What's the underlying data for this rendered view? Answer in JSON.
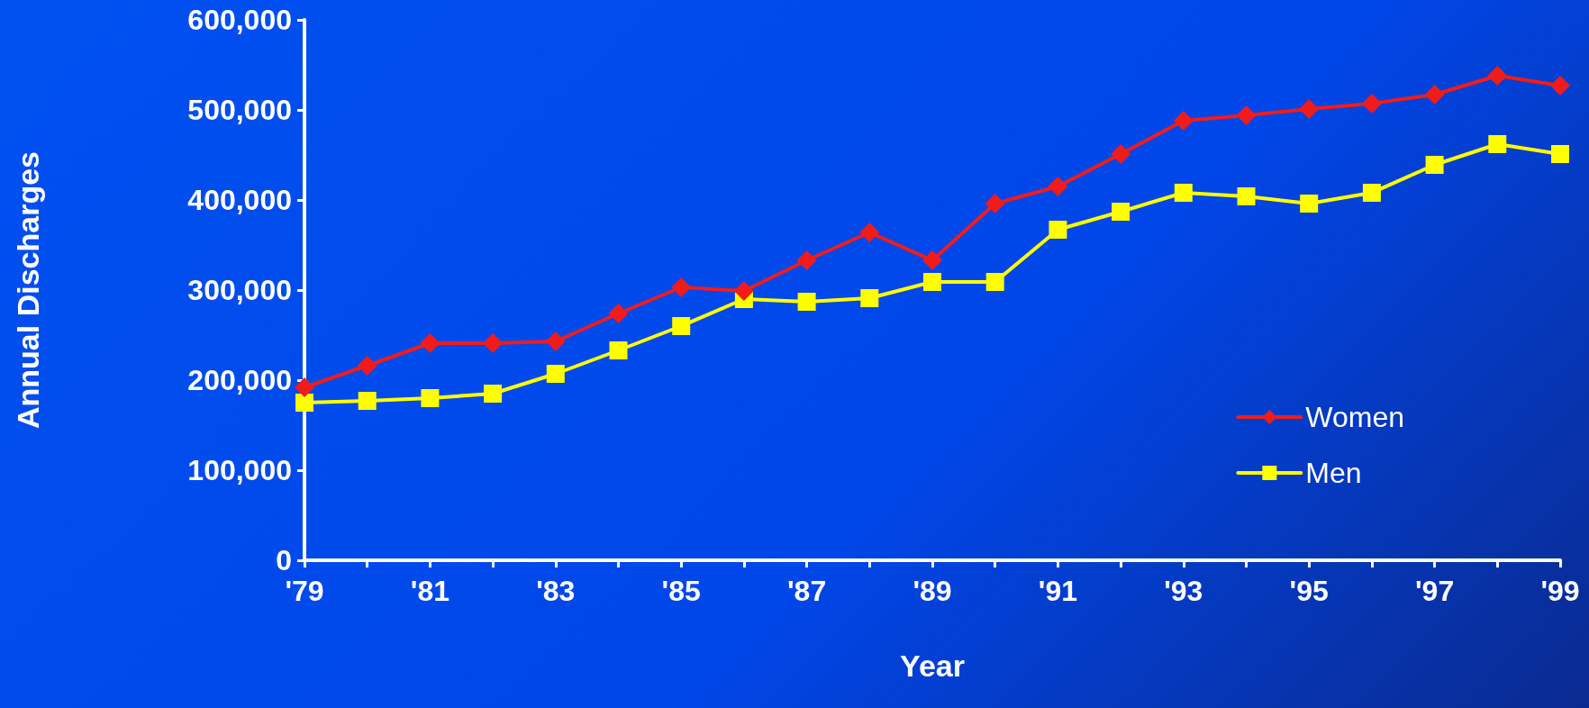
{
  "chart_data": {
    "type": "line",
    "xlabel": "Year",
    "ylabel": "Annual Discharges",
    "categories": [
      "'79",
      null,
      "'81",
      null,
      "'83",
      null,
      "'85",
      null,
      "'87",
      null,
      "'89",
      null,
      "'91",
      null,
      "'93",
      null,
      "'95",
      null,
      "'97",
      null,
      "'99"
    ],
    "series": [
      {
        "name": "Women",
        "color": "#f01c1c",
        "marker": "diamond",
        "values": [
          192000,
          216000,
          241000,
          241000,
          243000,
          274000,
          303000,
          299000,
          333000,
          364000,
          333000,
          396000,
          415000,
          451000,
          488000,
          494000,
          501000,
          507000,
          517000,
          538000,
          527000
        ]
      },
      {
        "name": "Men",
        "color": "#ffff00",
        "marker": "square",
        "values": [
          175000,
          177000,
          180000,
          185000,
          207000,
          233000,
          260000,
          290000,
          287000,
          291000,
          309000,
          309000,
          367000,
          387000,
          408000,
          404000,
          396000,
          408000,
          439000,
          462000,
          451000
        ]
      }
    ],
    "ylim": [
      0,
      600000
    ],
    "yticks": [
      0,
      {
        "value": 100000,
        "label": "100,000"
      },
      {
        "value": 200000,
        "label": "200,000"
      },
      {
        "value": 300000,
        "label": "300,000"
      },
      {
        "value": 400000,
        "label": "400,000"
      },
      {
        "value": 500000,
        "label": "500,000"
      },
      {
        "value": 600000,
        "label": "600,000"
      }
    ],
    "grid": false,
    "legend": "bottom right",
    "line_style": "solid"
  }
}
